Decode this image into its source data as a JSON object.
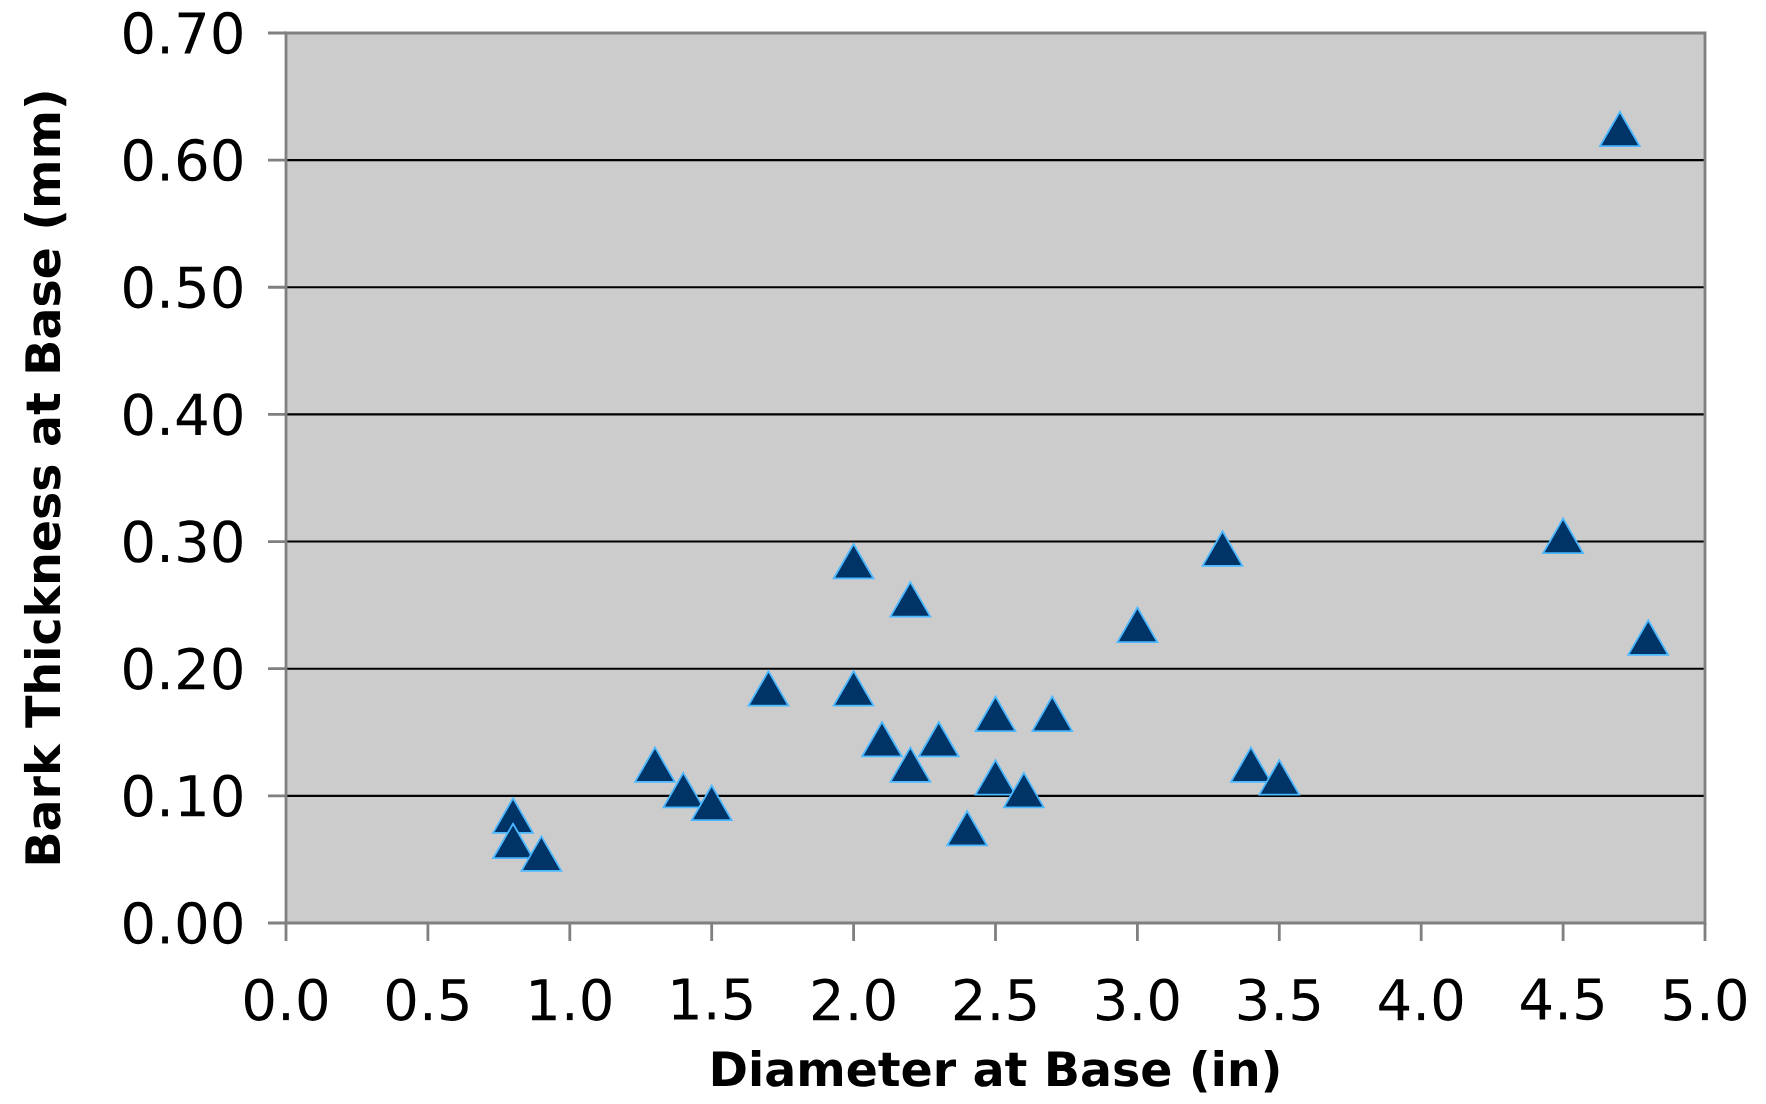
{
  "chart_data": {
    "type": "scatter",
    "xlabel": "Diameter at Base (in)",
    "ylabel": "Bark Thickness at Base (mm)",
    "x": [
      0.8,
      0.8,
      0.9,
      1.3,
      1.4,
      1.5,
      1.7,
      2.0,
      2.0,
      2.1,
      2.2,
      2.2,
      2.3,
      2.4,
      2.5,
      2.5,
      2.6,
      2.7,
      3.0,
      3.3,
      3.4,
      3.5,
      4.5,
      4.7,
      4.8
    ],
    "values": [
      0.08,
      0.06,
      0.05,
      0.12,
      0.1,
      0.09,
      0.18,
      0.28,
      0.18,
      0.14,
      0.25,
      0.12,
      0.14,
      0.07,
      0.16,
      0.11,
      0.1,
      0.16,
      0.23,
      0.29,
      0.12,
      0.11,
      0.3,
      0.62,
      0.22
    ],
    "color": "#003366",
    "marker": "triangle",
    "grid": "y",
    "xlim": [
      0,
      5
    ],
    "ylim": [
      0,
      0.7
    ],
    "xticks": [
      {
        "value": 0,
        "label": "0.0"
      },
      {
        "value": 0.5,
        "label": "0.5"
      },
      {
        "value": 1,
        "label": "1.0"
      },
      {
        "value": 1.5,
        "label": "1.5"
      },
      {
        "value": 2,
        "label": "2.0"
      },
      {
        "value": 2.5,
        "label": "2.5"
      },
      {
        "value": 3,
        "label": "3.0"
      },
      {
        "value": 3.5,
        "label": "3.5"
      },
      {
        "value": 4,
        "label": "4.0"
      },
      {
        "value": 4.5,
        "label": "4.5"
      },
      {
        "value": 5,
        "label": "5.0"
      }
    ],
    "yticks": [
      {
        "value": 0,
        "label": "0.00"
      },
      {
        "value": 0.1,
        "label": "0.10"
      },
      {
        "value": 0.2,
        "label": "0.20"
      },
      {
        "value": 0.3,
        "label": "0.30"
      },
      {
        "value": 0.4,
        "label": "0.40"
      },
      {
        "value": 0.5,
        "label": "0.50"
      },
      {
        "value": 0.6,
        "label": "0.60"
      },
      {
        "value": 0.7,
        "label": "0.70"
      }
    ]
  }
}
